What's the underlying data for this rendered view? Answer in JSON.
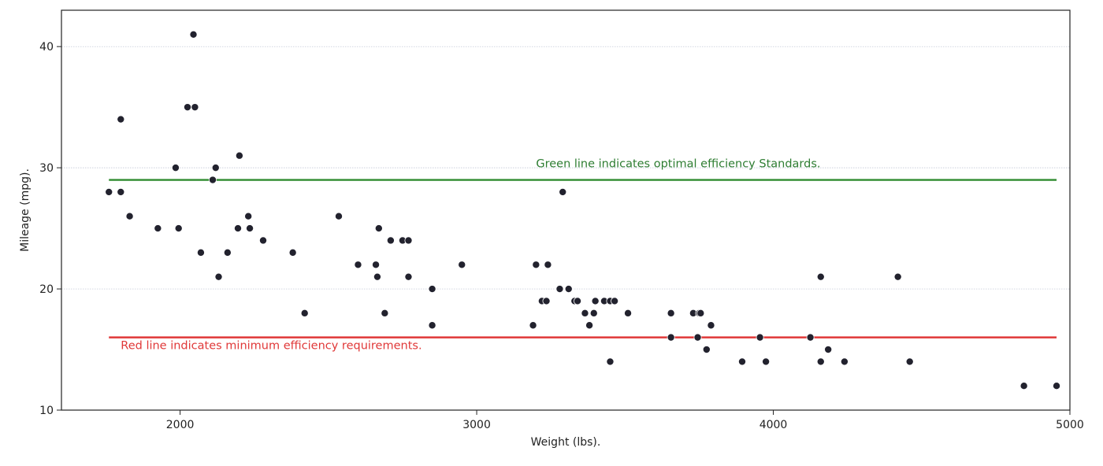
{
  "chart_data": {
    "type": "scatter",
    "title": "",
    "xlabel": "Weight (lbs).",
    "ylabel": "Mileage (mpg).",
    "xlim": [
      1600,
      5000
    ],
    "ylim": [
      10,
      43
    ],
    "xticks": [
      2000,
      3000,
      4000,
      5000
    ],
    "yticks": [
      10,
      20,
      30,
      40
    ],
    "grid": "horizontal",
    "point_color": "#22222e",
    "points": [
      [
        1760,
        28
      ],
      [
        1800,
        34
      ],
      [
        1800,
        28
      ],
      [
        1830,
        26
      ],
      [
        1925,
        25
      ],
      [
        1985,
        30
      ],
      [
        1995,
        25
      ],
      [
        2025,
        35
      ],
      [
        2045,
        41
      ],
      [
        2050,
        35
      ],
      [
        2070,
        23
      ],
      [
        2110,
        29
      ],
      [
        2120,
        30
      ],
      [
        2130,
        21
      ],
      [
        2160,
        23
      ],
      [
        2195,
        25
      ],
      [
        2200,
        31
      ],
      [
        2230,
        26
      ],
      [
        2235,
        25
      ],
      [
        2280,
        24
      ],
      [
        2380,
        23
      ],
      [
        2420,
        18
      ],
      [
        2535,
        26
      ],
      [
        2600,
        22
      ],
      [
        2660,
        22
      ],
      [
        2665,
        21
      ],
      [
        2670,
        25
      ],
      [
        2690,
        18
      ],
      [
        2710,
        24
      ],
      [
        2750,
        24
      ],
      [
        2770,
        24
      ],
      [
        2770,
        21
      ],
      [
        2850,
        20
      ],
      [
        2850,
        17
      ],
      [
        2950,
        22
      ],
      [
        3190,
        17
      ],
      [
        3200,
        22
      ],
      [
        3220,
        19
      ],
      [
        3235,
        19
      ],
      [
        3240,
        22
      ],
      [
        3280,
        20
      ],
      [
        3290,
        28
      ],
      [
        3310,
        20
      ],
      [
        3330,
        19
      ],
      [
        3340,
        19
      ],
      [
        3365,
        18
      ],
      [
        3380,
        17
      ],
      [
        3395,
        18
      ],
      [
        3400,
        19
      ],
      [
        3430,
        19
      ],
      [
        3450,
        14
      ],
      [
        3450,
        19
      ],
      [
        3465,
        19
      ],
      [
        3510,
        18
      ],
      [
        3655,
        18
      ],
      [
        3655,
        16
      ],
      [
        3730,
        18
      ],
      [
        3745,
        16
      ],
      [
        3750,
        18
      ],
      [
        3755,
        18
      ],
      [
        3775,
        15
      ],
      [
        3790,
        17
      ],
      [
        3895,
        14
      ],
      [
        3955,
        16
      ],
      [
        3975,
        14
      ],
      [
        4125,
        16
      ],
      [
        4160,
        21
      ],
      [
        4160,
        14
      ],
      [
        4185,
        15
      ],
      [
        4240,
        14
      ],
      [
        4420,
        21
      ],
      [
        4460,
        14
      ],
      [
        4845,
        12
      ],
      [
        4955,
        12
      ]
    ],
    "reference_lines": [
      {
        "value": 29,
        "x_range": [
          1760,
          4955
        ],
        "color": "#2e8b2e",
        "label": "Green line indicates optimal efficiency Standards."
      },
      {
        "value": 16,
        "x_range": [
          1760,
          4955
        ],
        "color": "#e03838",
        "label": "Red line indicates minimum efficiency requirements."
      }
    ],
    "annotations": [
      {
        "text": "Green line indicates optimal efficiency Standards.",
        "x": 3200,
        "y": 30.05,
        "color": "#2e7d32"
      },
      {
        "text": "Red line indicates minimum efficiency requirements.",
        "x": 1800,
        "y": 15.05,
        "color": "#e03838"
      }
    ]
  }
}
